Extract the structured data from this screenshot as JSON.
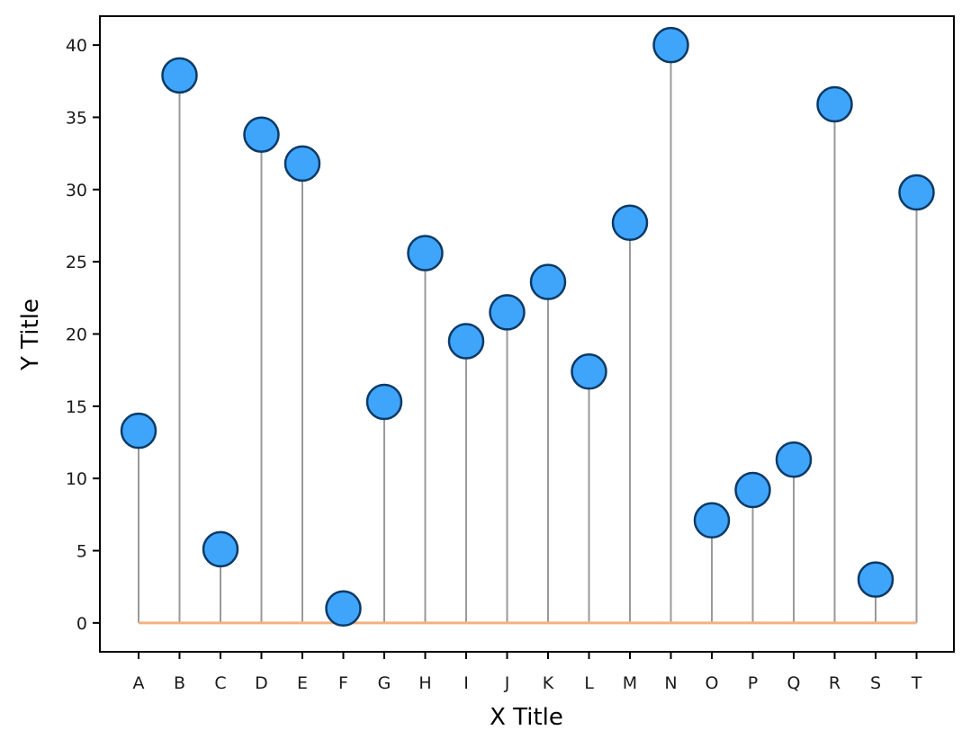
{
  "chart_data": {
    "type": "lollipop",
    "title": "",
    "xlabel": "X Title",
    "ylabel": "Y Title",
    "categories": [
      "A",
      "B",
      "C",
      "D",
      "E",
      "F",
      "G",
      "H",
      "I",
      "J",
      "K",
      "L",
      "M",
      "N",
      "O",
      "P",
      "Q",
      "R",
      "S",
      "T"
    ],
    "values": [
      13.3,
      37.9,
      5.1,
      33.8,
      31.8,
      1.0,
      15.3,
      25.6,
      19.5,
      21.5,
      23.6,
      17.4,
      27.7,
      40.0,
      7.1,
      9.2,
      11.3,
      35.9,
      3.0,
      29.8
    ],
    "baseline": 0,
    "ylim": [
      -2,
      42
    ],
    "yticks": [
      0,
      5,
      10,
      15,
      20,
      25,
      30,
      35,
      40
    ],
    "grid": false,
    "legend": "none",
    "colors": {
      "marker_fill": "#3fa5fb",
      "marker_edge": "#0d3a66",
      "stem": "#9a9a9a",
      "baseline": "#f4b183",
      "axes": "#000000"
    }
  }
}
